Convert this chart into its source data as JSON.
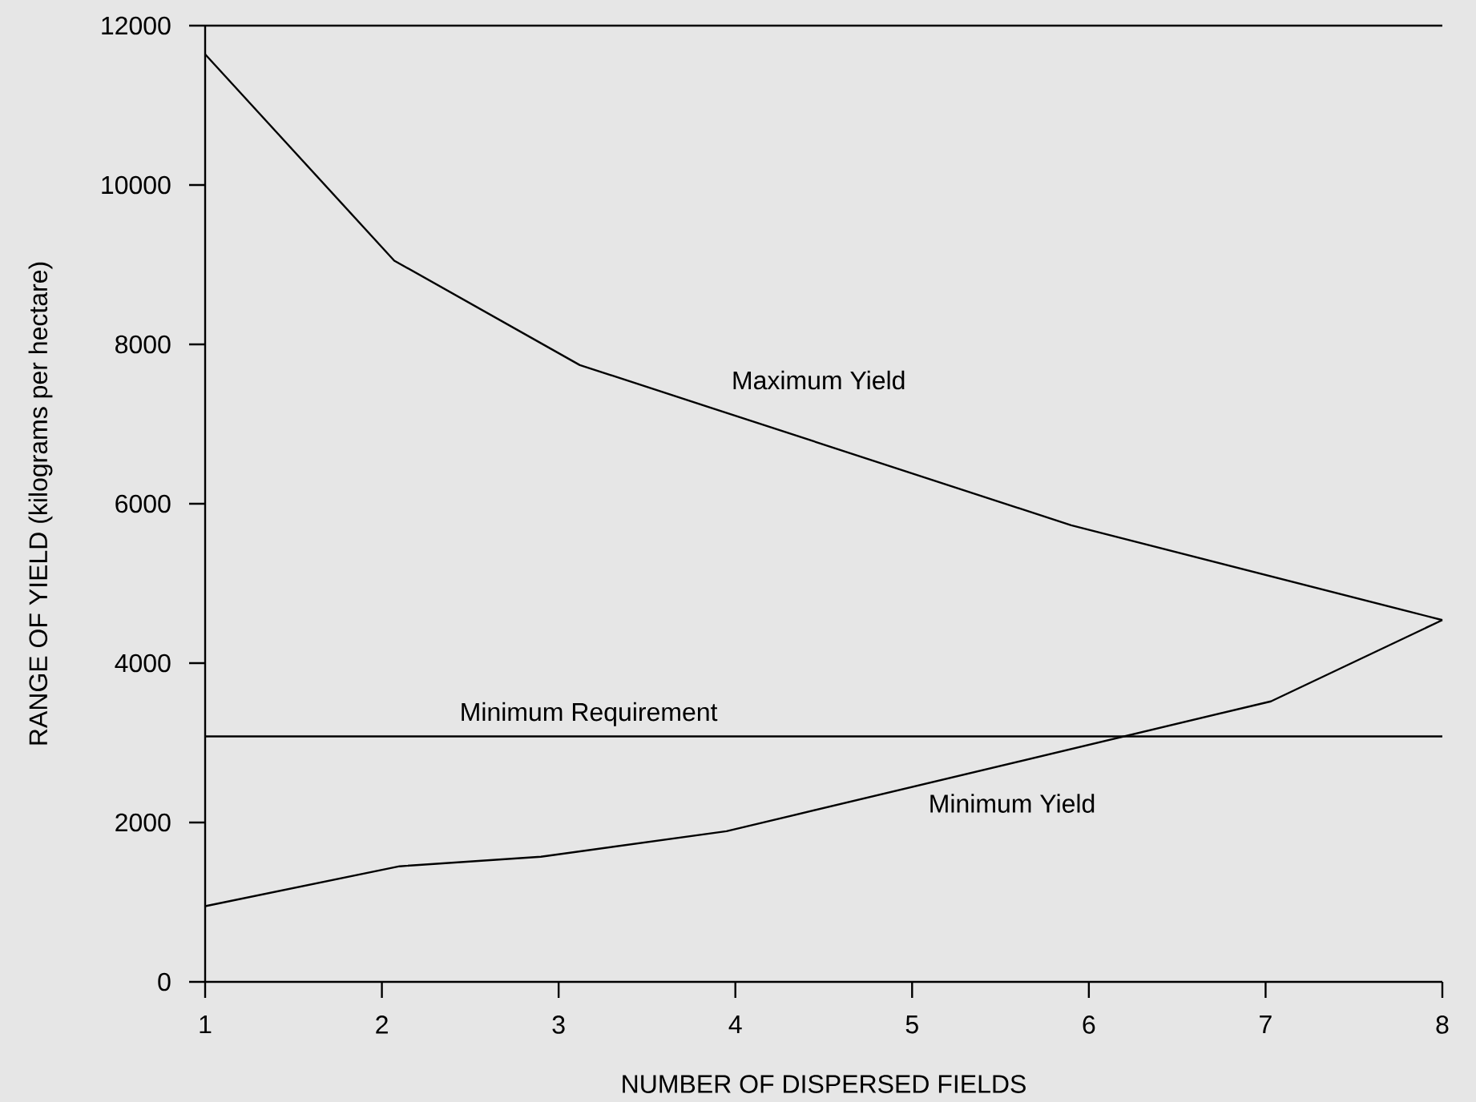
{
  "chart_data": {
    "type": "line",
    "xlabel": "NUMBER OF DISPERSED FIELDS",
    "ylabel": "RANGE OF YIELD (kilograms per hectare)",
    "series": [
      {
        "name": "Maximum Yield",
        "color": "#000000",
        "x": [
          1,
          2.07,
          3.12,
          5.9,
          8
        ],
        "values": [
          11640,
          9050,
          7740,
          5730,
          4540
        ]
      },
      {
        "name": "Minimum Yield",
        "color": "#000000",
        "x": [
          1,
          2.1,
          2.9,
          3.95,
          7.03,
          8
        ],
        "values": [
          950,
          1450,
          1570,
          1890,
          3520,
          4540
        ]
      }
    ],
    "xlim": [
      1,
      8
    ],
    "ylim": [
      0,
      12000
    ],
    "xticks": [
      1,
      2,
      3,
      4,
      5,
      6,
      7,
      8
    ],
    "yticks": [
      0,
      2000,
      4000,
      6000,
      8000,
      10000,
      12000
    ],
    "ref_lines": [
      {
        "axis": "y",
        "value": 3080,
        "label": "Minimum Requirement",
        "color": "#000000"
      }
    ]
  }
}
